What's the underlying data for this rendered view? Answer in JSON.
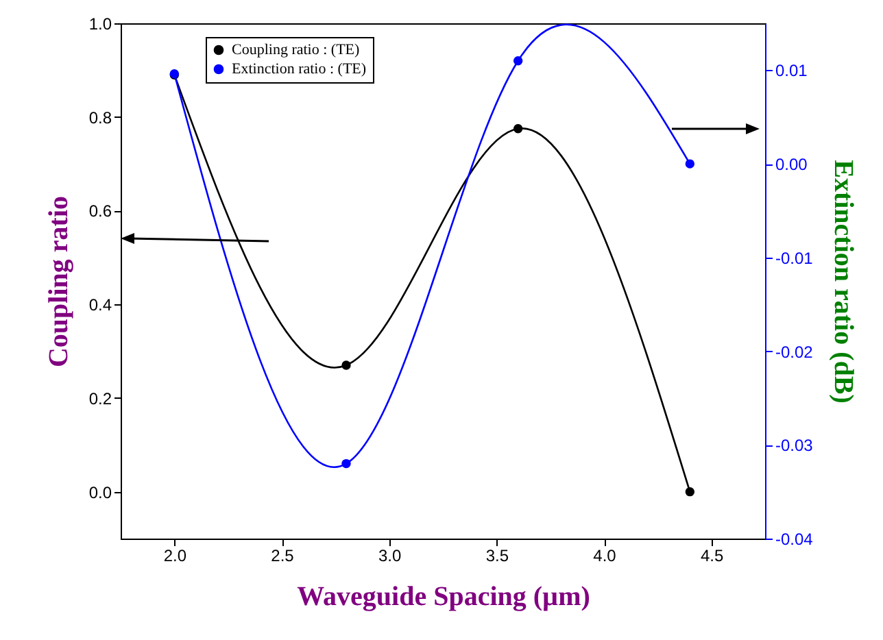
{
  "chart_data": {
    "type": "line",
    "xlabel": "Waveguide Spacing (µm)",
    "ylabel": "Coupling ratio",
    "y2label": "Extinction ratio (dB)",
    "x": [
      2.0,
      2.8,
      3.6,
      4.4
    ],
    "series": [
      {
        "name": "Coupling ratio : (TE)",
        "color": "#000000",
        "values": [
          0.89,
          0.27,
          0.775,
          0.0
        ]
      },
      {
        "name": "Extinction ratio : (TE)",
        "color": "#0000ff",
        "axis": "y2",
        "values": [
          0.0096,
          -0.032,
          0.011,
          0.0
        ]
      }
    ],
    "xlim": [
      1.75,
      4.75
    ],
    "xticks": [
      {
        "value": 2,
        "label": "2.0"
      },
      2.5,
      {
        "value": 3,
        "label": "3.0"
      },
      3.5,
      {
        "value": 4,
        "label": "4.0"
      },
      4.5
    ],
    "ylim": [
      -0.1,
      1.0
    ],
    "yticks": [
      {
        "value": 0,
        "label": "0.0"
      },
      0.2,
      0.4,
      0.6,
      0.8,
      {
        "value": 1,
        "label": "1.0"
      }
    ],
    "y2lim": [
      -0.04,
      0.015
    ],
    "y2ticks": [
      -0.04,
      -0.03,
      -0.02,
      -0.01,
      {
        "value": 0,
        "label": "0.00"
      },
      0.01
    ],
    "grid": false,
    "legend": "top left",
    "marker": "circle",
    "line_style": "solid"
  }
}
